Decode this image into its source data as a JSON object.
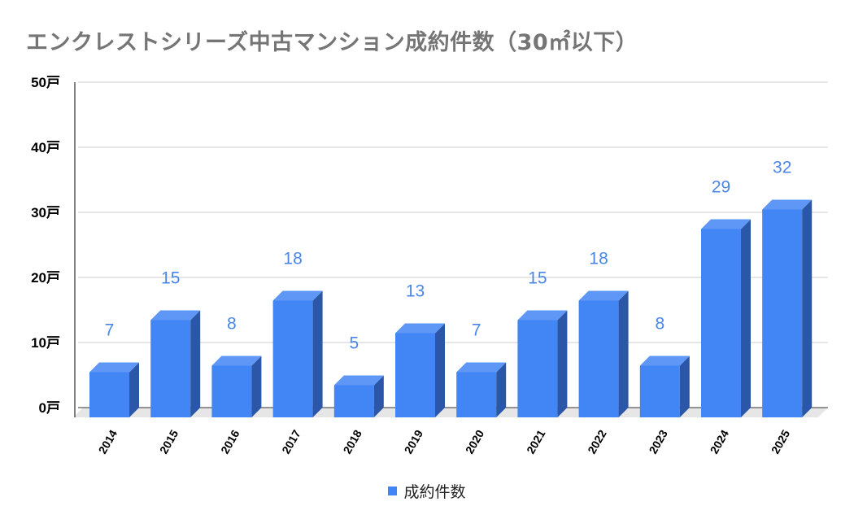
{
  "chart_data": {
    "type": "bar",
    "title": "エンクレストシリーズ中古マンション成約件数（30㎡以下）",
    "categories": [
      "2014",
      "2015",
      "2016",
      "2017",
      "2018",
      "2019",
      "2020",
      "2021",
      "2022",
      "2023",
      "2024",
      "2025"
    ],
    "series": [
      {
        "name": "成約件数",
        "values": [
          7,
          15,
          8,
          18,
          5,
          13,
          7,
          15,
          18,
          8,
          29,
          32
        ]
      }
    ],
    "ylim": [
      0,
      50
    ],
    "yticks": [
      0,
      10,
      20,
      30,
      40,
      50
    ],
    "y_tick_suffix": "戸",
    "grid": true,
    "legend": "bottom-center",
    "style": "3d-column",
    "colors": {
      "front": "#4285f4",
      "side": "#2c57a8",
      "top": "#5e97f6",
      "label": "#4a86e8",
      "floor": "#e6e6e6"
    }
  }
}
